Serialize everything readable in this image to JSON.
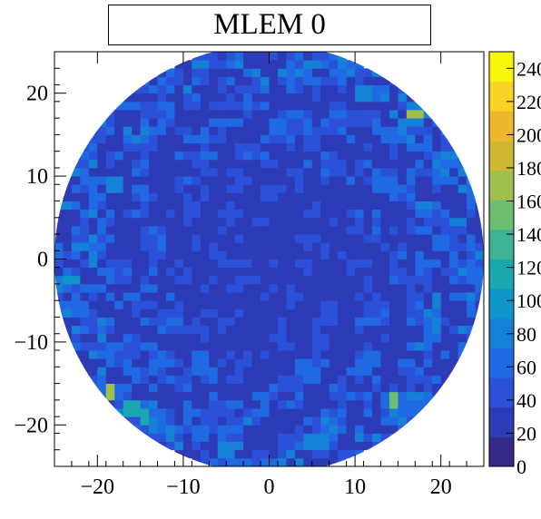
{
  "chart_data": {
    "type": "heatmap",
    "title": "MLEM 0",
    "xlabel": "",
    "ylabel": "",
    "xlim": [
      -25,
      25
    ],
    "ylim": [
      -25,
      25
    ],
    "x_ticks": [
      -20,
      -10,
      0,
      10,
      20
    ],
    "y_ticks": [
      -20,
      -10,
      0,
      10,
      20
    ],
    "x_tick_labels": [
      "−20",
      "−10",
      "0",
      "10",
      "20"
    ],
    "y_tick_labels": [
      "−20",
      "−10",
      "0",
      "10",
      "20"
    ],
    "z_range": [
      0,
      250
    ],
    "colorbar_ticks": [
      0,
      20,
      40,
      60,
      80,
      100,
      120,
      140,
      160,
      180,
      200,
      220,
      240
    ],
    "colorbar_tick_labels": [
      "0",
      "20",
      "40",
      "60",
      "80",
      "100",
      "120",
      "140",
      "160",
      "180",
      "200",
      "220",
      "240"
    ],
    "colormap": [
      "#352a87",
      "#2d3bb6",
      "#2b51d9",
      "#1f6ae2",
      "#1481d6",
      "#0f96c9",
      "#1aa8b0",
      "#3cb494",
      "#6dbd72",
      "#a0be4e",
      "#cdb733",
      "#efb82c",
      "#fbd226",
      "#f9f60e"
    ],
    "region": "disk",
    "disk_radius": 25,
    "background_level": 18,
    "noise_level_range": [
      25,
      60
    ],
    "hotspots": [
      {
        "x": 17,
        "y": 17.5,
        "value": 215
      },
      {
        "x": -18.5,
        "y": -16,
        "value": 200
      },
      {
        "x": 14.5,
        "y": -17,
        "value": 190
      },
      {
        "x": -14.5,
        "y": -19,
        "value": 150
      },
      {
        "x": -16,
        "y": -18,
        "value": 170
      },
      {
        "x": 11,
        "y": 20,
        "value": 120
      },
      {
        "x": -23,
        "y": -2.5,
        "value": 120
      },
      {
        "x": -22,
        "y": 1.5,
        "value": 100
      },
      {
        "x": -22,
        "y": -6,
        "value": 90
      },
      {
        "x": -18,
        "y": 9,
        "value": 110
      },
      {
        "x": -24,
        "y": 6.5,
        "value": 100
      },
      {
        "x": 18,
        "y": 6.5,
        "value": 95
      },
      {
        "x": 20,
        "y": 2,
        "value": 90
      },
      {
        "x": 12,
        "y": -12,
        "value": 95
      },
      {
        "x": 4,
        "y": -13,
        "value": 90
      },
      {
        "x": -8,
        "y": -21,
        "value": 90
      },
      {
        "x": -5,
        "y": -23,
        "value": 110
      },
      {
        "x": 5,
        "y": 14,
        "value": 80
      },
      {
        "x": -8,
        "y": -12,
        "value": 85
      },
      {
        "x": 3,
        "y": -22,
        "value": 80
      },
      {
        "x": 20,
        "y": 10,
        "value": 90
      }
    ]
  }
}
